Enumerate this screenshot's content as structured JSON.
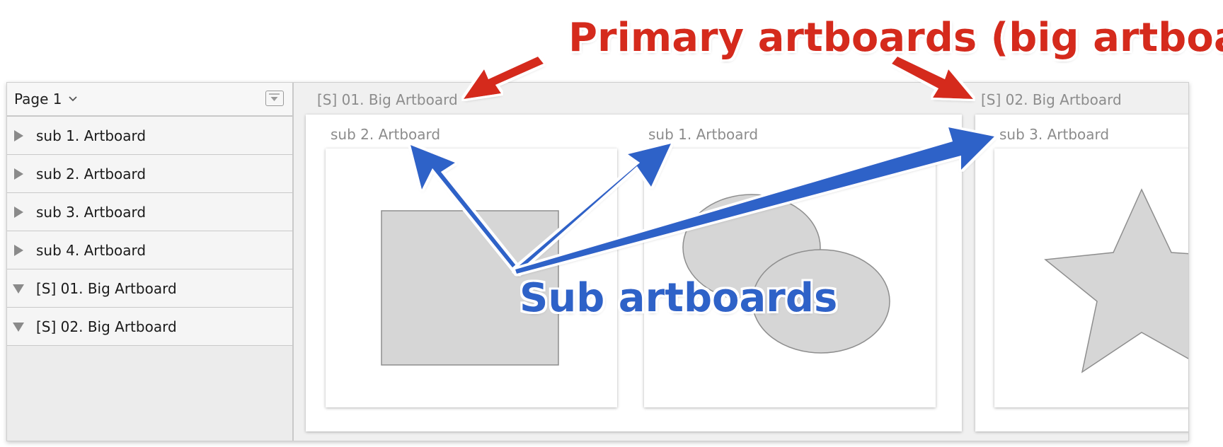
{
  "sidebar": {
    "page_selector": {
      "label": "Page 1"
    },
    "layers": [
      {
        "label": "sub 1. Artboard",
        "expanded": false
      },
      {
        "label": "sub 2. Artboard",
        "expanded": false
      },
      {
        "label": "sub 3. Artboard",
        "expanded": false
      },
      {
        "label": "sub 4. Artboard",
        "expanded": false
      },
      {
        "label": "[S] 01. Big Artboard",
        "expanded": true
      },
      {
        "label": "[S] 02. Big Artboard",
        "expanded": true
      }
    ]
  },
  "canvas": {
    "big_artboards": [
      {
        "title": "[S] 01. Big Artboard",
        "sub_artboards": [
          {
            "title": "sub 2. Artboard",
            "content": "rectangle"
          },
          {
            "title": "sub 1. Artboard",
            "content": "two-ellipses"
          }
        ]
      },
      {
        "title": "[S] 02. Big Artboard",
        "sub_artboards": [
          {
            "title": "sub 3. Artboard",
            "content": "star"
          }
        ]
      }
    ]
  },
  "annotations": {
    "primary": {
      "text": "Primary artboards (big artboards)",
      "color": "#d52b1e"
    },
    "sub": {
      "text": "Sub artboards",
      "color": "#2f62c8"
    }
  },
  "colors": {
    "shape_fill": "#d6d6d6",
    "shape_stroke": "#8e8e8e",
    "canvas_bg": "#f0f0f0"
  }
}
